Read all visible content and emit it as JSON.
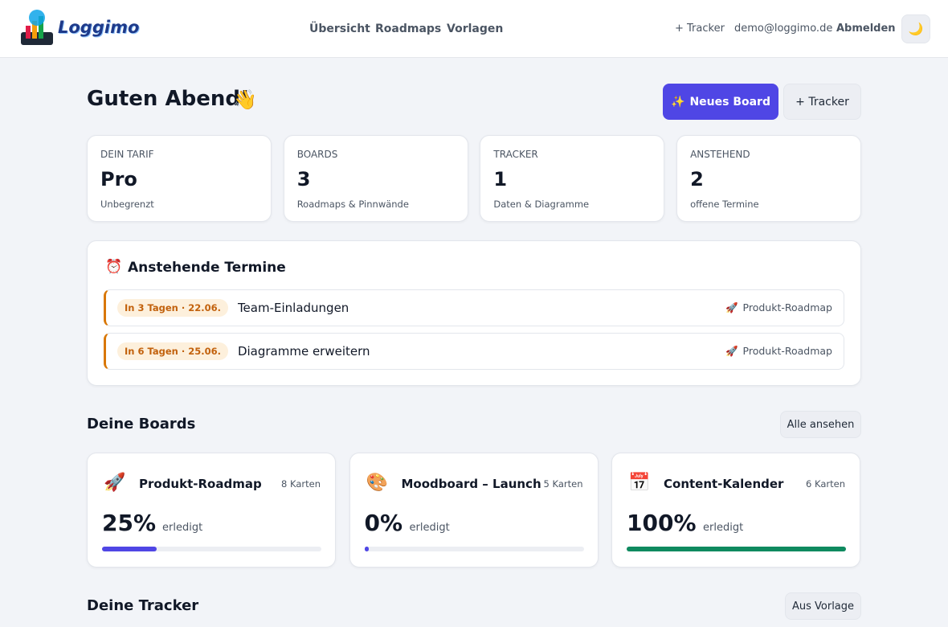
{
  "header": {
    "logo": "Loggimo",
    "nav": [
      "Übersicht",
      "Roadmaps",
      "Vorlagen"
    ],
    "actions": [
      "+ Tracker",
      "demo@loggimo.de",
      "Abmelden"
    ],
    "theme_icon": "🌙"
  },
  "greeting": {
    "title": "Guten Abend!",
    "icon": "👋",
    "buttons": [
      {
        "icon": "✨",
        "label": "Neues Board"
      },
      {
        "label": "+ Tracker"
      }
    ]
  },
  "stats": [
    {
      "label": "DEIN TARIF",
      "value": "Pro",
      "caption": "Unbegrenzt"
    },
    {
      "label": "BOARDS",
      "value": 3,
      "caption": "Roadmaps & Pinnwände"
    },
    {
      "label": "TRACKER",
      "value": 1,
      "caption": "Daten & Diagramme"
    },
    {
      "label": "ANSTEHEND",
      "value": 2,
      "caption": "offene Termine"
    }
  ],
  "appointments": {
    "icon": "⏰",
    "title": "Anstehende Termine",
    "items": [
      {
        "due": "In 3 Tagen · 22.06.",
        "title": "Team-Einladungen",
        "board_icon": "🚀",
        "board": "Produkt-Roadmap"
      },
      {
        "due": "In 6 Tagen · 25.06.",
        "title": "Diagramme erweitern",
        "board_icon": "🚀",
        "board": "Produkt-Roadmap"
      }
    ]
  },
  "boards": {
    "title": "Deine Boards",
    "button": "Alle ansehen",
    "items": [
      {
        "icon": "🚀",
        "name": "Produkt-Roadmap",
        "cards": "8 Karten",
        "progress": 25,
        "progress_label": "25%",
        "status": "erledigt",
        "color": "#4f46e5"
      },
      {
        "icon": "🎨",
        "name": "Moodboard – Launch",
        "cards": "5 Karten",
        "progress": 0,
        "progress_label": "0%",
        "status": "erledigt",
        "color": "#4f46e5"
      },
      {
        "icon": "📅",
        "name": "Content-Kalender",
        "cards": "6 Karten",
        "progress": 100,
        "progress_label": "100%",
        "status": "erledigt",
        "color": "#0f8a5f"
      }
    ]
  },
  "trackers": {
    "title": "Deine Tracker",
    "button": "Aus Vorlage"
  }
}
